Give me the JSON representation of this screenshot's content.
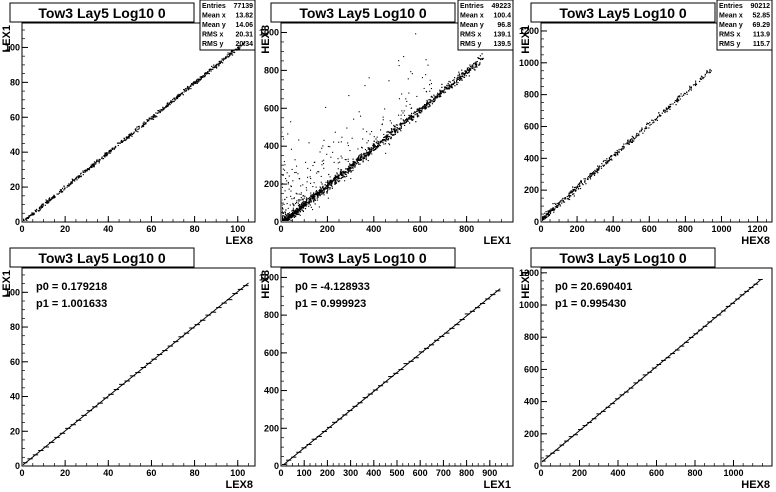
{
  "chart_data": [
    {
      "type": "scatter",
      "title": "Tow3 Lay5 Log10 0",
      "xlabel": "LEX8",
      "ylabel": "LEX1",
      "xlim": [
        0,
        108
      ],
      "ylim": [
        0,
        114
      ],
      "xticks": [
        0,
        20,
        40,
        60,
        80,
        100
      ],
      "yticks": [
        0,
        20,
        40,
        60,
        80,
        100
      ],
      "stats": [
        {
          "label": "Entries",
          "value": "77139"
        },
        {
          "label": "Mean x",
          "value": "13.82"
        },
        {
          "label": "Mean y",
          "value": "14.06"
        },
        {
          "label": "RMS x",
          "value": "20.31"
        },
        {
          "label": "RMS y",
          "value": "20.34"
        }
      ],
      "band": {
        "x_range": [
          0,
          103
        ],
        "slope": 1.0,
        "intercept": 0.2,
        "spread": 0.6
      }
    },
    {
      "type": "scatter",
      "title": "Tow3 Lay5 Log10 0",
      "xlabel": "LEX1",
      "ylabel": "HEX8",
      "xlim": [
        0,
        1000
      ],
      "ylim": [
        0,
        1050
      ],
      "xticks": [
        0,
        200,
        400,
        600,
        800
      ],
      "yticks": [
        0,
        200,
        400,
        600,
        800,
        1000
      ],
      "stats": [
        {
          "label": "Entries",
          "value": "49223"
        },
        {
          "label": "Mean x",
          "value": "100.4"
        },
        {
          "label": "Mean y",
          "value": "96.8"
        },
        {
          "label": "RMS x",
          "value": "139.1"
        },
        {
          "label": "RMS y",
          "value": "139.5"
        }
      ],
      "band": {
        "x_range": [
          0,
          870
        ],
        "slope": 1.0,
        "intercept": -4,
        "spread": 12
      },
      "scatter_outliers": true
    },
    {
      "type": "scatter",
      "title": "Tow3 Lay5 Log10 0",
      "xlabel": "HEX8",
      "ylabel": "HEX1",
      "xlim": [
        0,
        1280
      ],
      "ylim": [
        0,
        1250
      ],
      "xticks": [
        0,
        200,
        400,
        600,
        800,
        1000,
        1200
      ],
      "yticks": [
        0,
        200,
        400,
        600,
        800,
        1000,
        1200
      ],
      "stats": [
        {
          "label": "Entries",
          "value": "90212"
        },
        {
          "label": "Mean x",
          "value": "52.85"
        },
        {
          "label": "Mean y",
          "value": "69.29"
        },
        {
          "label": "RMS x",
          "value": "113.9"
        },
        {
          "label": "RMS y",
          "value": "115.7"
        }
      ],
      "band": {
        "x_range": [
          0,
          950
        ],
        "slope": 1.0,
        "intercept": 20,
        "spread": 10
      }
    },
    {
      "type": "line",
      "title": "Tow3 Lay5 Log10 0",
      "xlabel": "LEX8",
      "ylabel": "LEX1",
      "xlim": [
        0,
        108
      ],
      "ylim": [
        0,
        114
      ],
      "xticks": [
        0,
        20,
        40,
        60,
        80,
        100
      ],
      "yticks": [
        0,
        20,
        40,
        60,
        80,
        100
      ],
      "fit": {
        "p0_label": "p0 = 0.179218",
        "p1_label": "p1 = 1.001633",
        "p0": 0.179218,
        "p1": 1.001633,
        "x_range": [
          0,
          105
        ]
      },
      "profile": {
        "x_range": [
          0,
          105
        ],
        "step": 2.5
      }
    },
    {
      "type": "line",
      "title": "Tow3 Lay5 Log10 0",
      "xlabel": "LEX1",
      "ylabel": "HEX8",
      "xlim": [
        0,
        1000
      ],
      "ylim": [
        0,
        1050
      ],
      "xticks": [
        0,
        100,
        200,
        300,
        400,
        500,
        600,
        700,
        800,
        900
      ],
      "yticks": [
        0,
        200,
        400,
        600,
        800,
        1000
      ],
      "fit": {
        "p0_label": "p0 = -4.128933",
        "p1_label": "p1 = 0.999923",
        "p0": -4.128933,
        "p1": 0.999923,
        "x_range": [
          0,
          945
        ]
      },
      "profile": {
        "x_range": [
          0,
          945
        ],
        "step": 22
      }
    },
    {
      "type": "line",
      "title": "Tow3 Lay5 Log10 0",
      "xlabel": "HEX8",
      "ylabel": "HEX1",
      "xlim": [
        0,
        1200
      ],
      "ylim": [
        0,
        1230
      ],
      "xticks": [
        0,
        200,
        400,
        600,
        800,
        1000
      ],
      "yticks": [
        0,
        200,
        400,
        600,
        800,
        1000,
        1200
      ],
      "fit": {
        "p0_label": "p0 = 20.690401",
        "p1_label": "p1 = 0.995430",
        "p0": 20.690401,
        "p1": 0.99543,
        "x_range": [
          0,
          1140
        ]
      },
      "profile": {
        "x_range": [
          0,
          1140
        ],
        "step": 24
      }
    }
  ]
}
